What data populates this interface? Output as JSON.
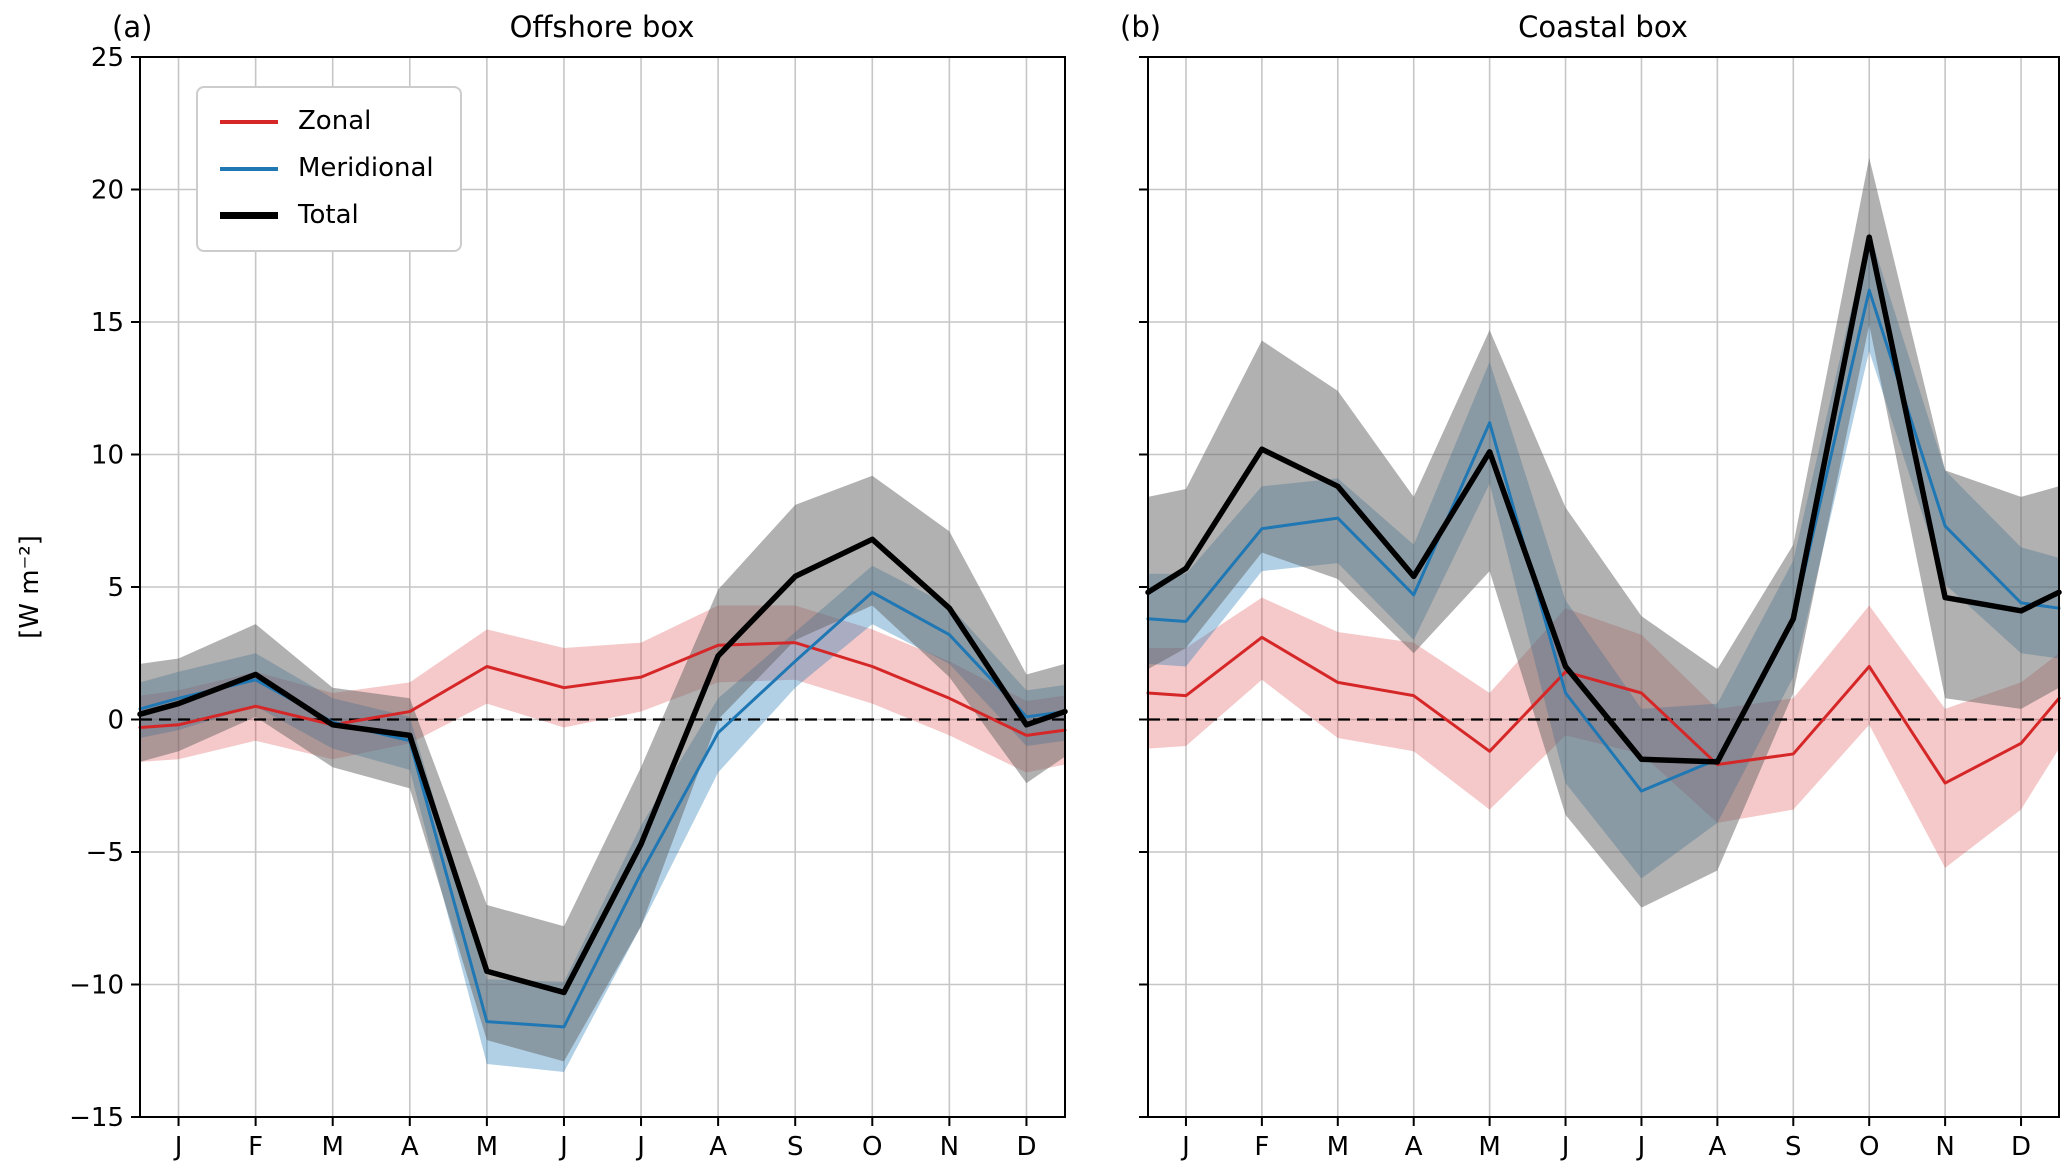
{
  "figure": {
    "background": "#ffffff"
  },
  "colors": {
    "zonal": "#d62728",
    "meridional": "#1f77b4",
    "total": "#000000",
    "zonal_band": "rgba(214,39,40,0.25)",
    "meridional_band": "rgba(31,119,180,0.35)",
    "total_band": "rgba(100,100,100,0.5)",
    "grid": "#c6c6c6",
    "axis": "#000000"
  },
  "legend": {
    "position": "upper left",
    "items": [
      {
        "label": "Zonal",
        "color_key": "zonal",
        "thick": false
      },
      {
        "label": "Meridional",
        "color_key": "meridional",
        "thick": false
      },
      {
        "label": "Total",
        "color_key": "total",
        "thick": true
      }
    ]
  },
  "axes": {
    "ylim": [
      -15,
      25
    ],
    "xlim": [
      0.5,
      12.5
    ],
    "y_ticks": [
      -15,
      -10,
      -5,
      0,
      5,
      10,
      15,
      20,
      25
    ],
    "y_tick_labels": [
      "−15",
      "−10",
      "−5",
      "0",
      "5",
      "10",
      "15",
      "20",
      "25"
    ],
    "x_tick_labels": [
      "J",
      "F",
      "M",
      "A",
      "M",
      "J",
      "J",
      "A",
      "S",
      "O",
      "N",
      "D"
    ],
    "grid": true,
    "zero_line": "dashed"
  },
  "chart_data": [
    {
      "type": "line",
      "panel_label": "(a)",
      "title": "Offshore box",
      "ylabel": "[W m⁻²]",
      "categories": [
        "J",
        "F",
        "M",
        "A",
        "M",
        "J",
        "J",
        "A",
        "S",
        "O",
        "N",
        "D"
      ],
      "x": [
        0.5,
        1,
        2,
        3,
        4,
        5,
        6,
        7,
        8,
        9,
        10,
        11,
        12,
        12.5
      ],
      "series": [
        {
          "name": "Zonal",
          "color_key": "zonal",
          "values": [
            -0.3,
            -0.2,
            0.5,
            -0.2,
            0.3,
            2.0,
            1.2,
            1.6,
            2.8,
            2.9,
            2.0,
            0.8,
            -0.6,
            -0.4
          ],
          "band_upper": [
            0.9,
            1.1,
            1.8,
            1.0,
            1.4,
            3.4,
            2.7,
            2.9,
            4.3,
            4.3,
            3.4,
            2.2,
            0.7,
            0.9
          ],
          "band_lower": [
            -1.6,
            -1.5,
            -0.8,
            -1.5,
            -0.9,
            0.6,
            -0.3,
            0.3,
            1.4,
            1.5,
            0.6,
            -0.6,
            -2.0,
            -1.7
          ]
        },
        {
          "name": "Meridional",
          "color_key": "meridional",
          "values": [
            0.4,
            0.8,
            1.5,
            -0.1,
            -0.8,
            -11.4,
            -11.6,
            -5.8,
            -0.5,
            2.2,
            4.8,
            3.2,
            0.1,
            0.3
          ],
          "band_upper": [
            1.4,
            1.8,
            2.5,
            0.8,
            0.1,
            -9.8,
            -9.9,
            -4.0,
            0.8,
            3.3,
            5.8,
            4.3,
            1.1,
            1.3
          ],
          "band_lower": [
            -0.7,
            -0.4,
            0.5,
            -1.1,
            -1.9,
            -13.0,
            -13.3,
            -7.8,
            -2.0,
            1.2,
            3.6,
            2.1,
            -1.0,
            -0.8
          ]
        },
        {
          "name": "Total",
          "color_key": "total",
          "values": [
            0.2,
            0.6,
            1.7,
            -0.2,
            -0.6,
            -9.5,
            -10.3,
            -4.7,
            2.4,
            5.4,
            6.8,
            4.2,
            -0.2,
            0.3
          ],
          "band_upper": [
            2.1,
            2.3,
            3.6,
            1.2,
            0.8,
            -7.0,
            -7.8,
            -1.8,
            4.9,
            8.1,
            9.2,
            7.1,
            1.7,
            2.1
          ],
          "band_lower": [
            -1.6,
            -1.2,
            0.1,
            -1.8,
            -2.6,
            -12.1,
            -12.9,
            -7.8,
            0.0,
            3.0,
            4.3,
            1.6,
            -2.4,
            -1.4
          ]
        }
      ]
    },
    {
      "type": "line",
      "panel_label": "(b)",
      "title": "Coastal box",
      "categories": [
        "J",
        "F",
        "M",
        "A",
        "M",
        "J",
        "J",
        "A",
        "S",
        "O",
        "N",
        "D"
      ],
      "x": [
        0.5,
        1,
        2,
        3,
        4,
        5,
        6,
        7,
        8,
        9,
        10,
        11,
        12,
        12.5
      ],
      "series": [
        {
          "name": "Zonal",
          "color_key": "zonal",
          "values": [
            1.0,
            0.9,
            3.1,
            1.4,
            0.9,
            -1.2,
            1.8,
            1.0,
            -1.7,
            -1.3,
            2.0,
            -2.4,
            -0.9,
            0.8
          ],
          "band_upper": [
            2.7,
            2.7,
            4.6,
            3.3,
            2.9,
            1.0,
            4.2,
            3.2,
            0.4,
            0.8,
            4.3,
            0.4,
            1.4,
            2.5
          ],
          "band_lower": [
            -1.1,
            -1.0,
            1.5,
            -0.7,
            -1.2,
            -3.4,
            -0.6,
            -1.3,
            -3.9,
            -3.4,
            -0.2,
            -5.6,
            -3.4,
            -1.1
          ]
        },
        {
          "name": "Meridional",
          "color_key": "meridional",
          "values": [
            3.8,
            3.7,
            7.2,
            7.6,
            4.7,
            11.2,
            1.0,
            -2.7,
            -1.5,
            3.8,
            16.2,
            7.3,
            4.4,
            4.2
          ],
          "band_upper": [
            5.5,
            5.5,
            8.8,
            9.1,
            6.6,
            13.5,
            4.5,
            0.4,
            0.6,
            6.0,
            18.4,
            9.4,
            6.5,
            6.1
          ],
          "band_lower": [
            2.1,
            2.0,
            5.6,
            5.9,
            3.0,
            8.9,
            -2.4,
            -6.0,
            -3.9,
            1.6,
            13.9,
            5.1,
            2.5,
            2.3
          ]
        },
        {
          "name": "Total",
          "color_key": "total",
          "values": [
            4.8,
            5.7,
            10.2,
            8.8,
            5.4,
            10.1,
            2.0,
            -1.5,
            -1.6,
            3.8,
            18.2,
            4.6,
            4.1,
            4.8
          ],
          "band_upper": [
            8.4,
            8.7,
            14.3,
            12.4,
            8.4,
            14.7,
            8.0,
            3.9,
            1.9,
            6.6,
            21.2,
            9.4,
            8.4,
            8.8
          ],
          "band_lower": [
            1.9,
            2.7,
            6.3,
            5.3,
            2.5,
            5.6,
            -3.6,
            -7.1,
            -5.7,
            1.0,
            14.9,
            0.8,
            0.4,
            1.2
          ]
        }
      ]
    }
  ]
}
